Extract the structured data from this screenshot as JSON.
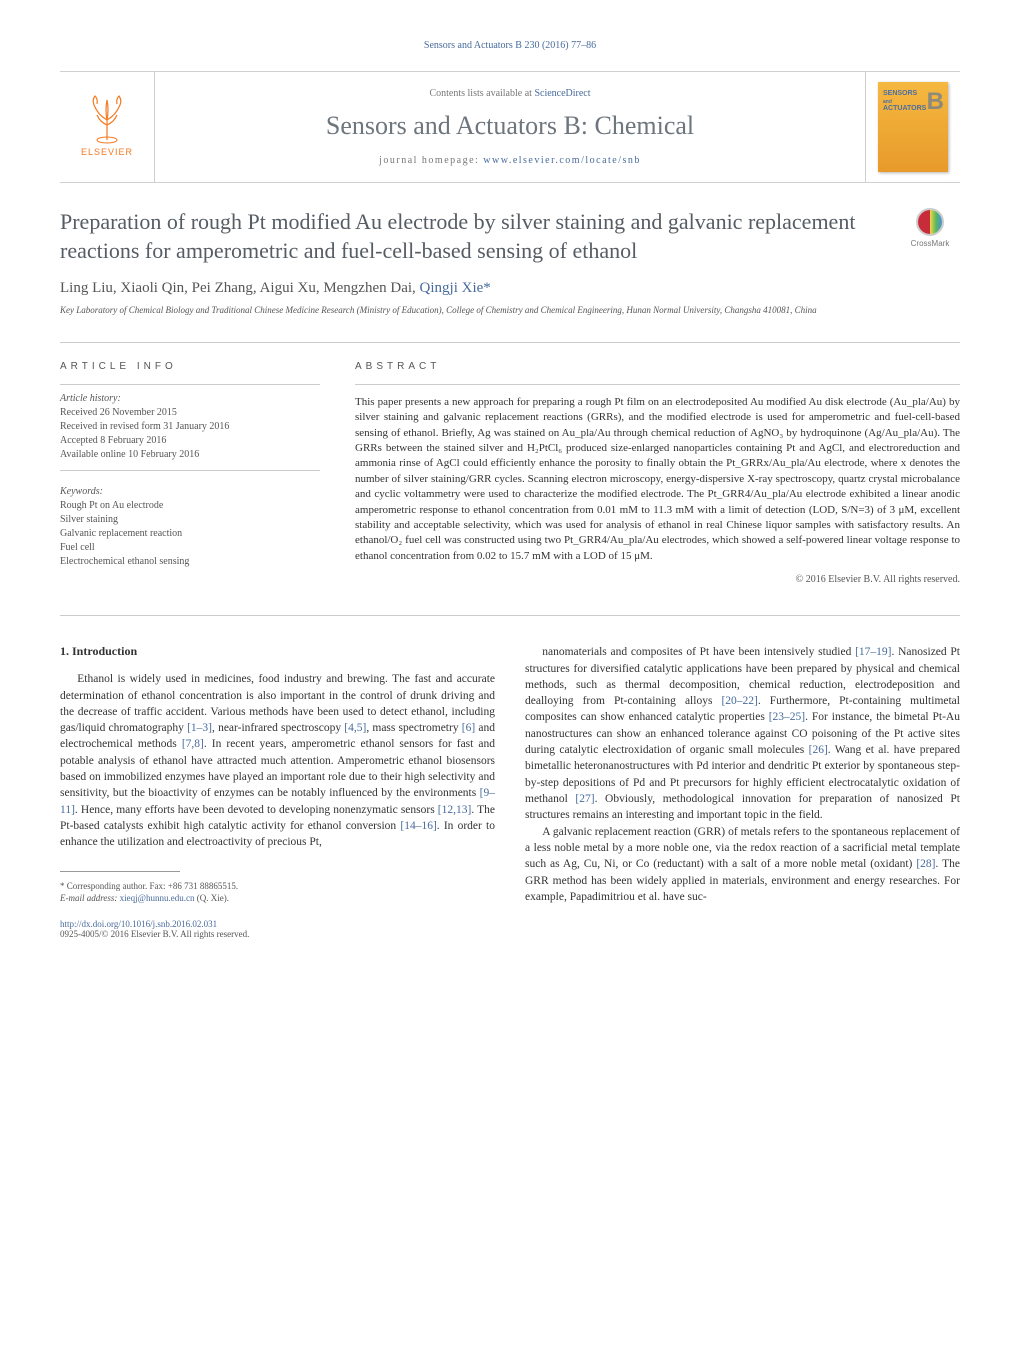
{
  "running_header": {
    "text": "Sensors and Actuators B 230 (2016) 77–86",
    "color": "#486b9c",
    "fontsize": 10
  },
  "masthead": {
    "publisher_logo_text": "ELSEVIER",
    "publisher_logo_color": "#f47920",
    "contents_prefix": "Contents lists available at ",
    "contents_link": "ScienceDirect",
    "journal_name": "Sensors and Actuators B: Chemical",
    "journal_name_color": "#6d757d",
    "journal_name_fontsize": 26,
    "homepage_label": "journal homepage: ",
    "homepage_url": "www.elsevier.com/locate/snb",
    "cover_top": "SENSORS",
    "cover_mid": "ACTUATORS",
    "cover_letter": "B",
    "cover_bg_gradient": [
      "#f5b840",
      "#e89a2a"
    ]
  },
  "crossmark": {
    "label": "CrossMark"
  },
  "title": "Preparation of rough Pt modified Au electrode by silver staining and galvanic replacement reactions for amperometric and fuel-cell-based sensing of ethanol",
  "title_color": "#555c63",
  "title_fontsize": 22,
  "authors_list": "Ling Liu, Xiaoli Qin, Pei Zhang, Aigui Xu, Mengzhen Dai, ",
  "corresponding_author": "Qingji Xie",
  "corresponding_marker": "*",
  "affiliation": "Key Laboratory of Chemical Biology and Traditional Chinese Medicine Research (Ministry of Education), College of Chemistry and Chemical Engineering, Hunan Normal University, Changsha 410081, China",
  "article_info": {
    "heading": "article info",
    "history_label": "Article history:",
    "history": [
      "Received 26 November 2015",
      "Received in revised form 31 January 2016",
      "Accepted 8 February 2016",
      "Available online 10 February 2016"
    ],
    "keywords_label": "Keywords:",
    "keywords": [
      "Rough Pt on Au electrode",
      "Silver staining",
      "Galvanic replacement reaction",
      "Fuel cell",
      "Electrochemical ethanol sensing"
    ]
  },
  "abstract": {
    "heading": "abstract",
    "text": "This paper presents a new approach for preparing a rough Pt film on an electrodeposited Au modified Au disk electrode (Au_pla/Au) by silver staining and galvanic replacement reactions (GRRs), and the modified electrode is used for amperometric and fuel-cell-based sensing of ethanol. Briefly, Ag was stained on Au_pla/Au through chemical reduction of AgNO₃ by hydroquinone (Ag/Au_pla/Au). The GRRs between the stained silver and H₂PtCl₆ produced size-enlarged nanoparticles containing Pt and AgCl, and electroreduction and ammonia rinse of AgCl could efficiently enhance the porosity to finally obtain the Pt_GRRx/Au_pla/Au electrode, where x denotes the number of silver staining/GRR cycles. Scanning electron microscopy, energy-dispersive X-ray spectroscopy, quartz crystal microbalance and cyclic voltammetry were used to characterize the modified electrode. The Pt_GRR4/Au_pla/Au electrode exhibited a linear anodic amperometric response to ethanol concentration from 0.01 mM to 11.3 mM with a limit of detection (LOD, S/N=3) of 3 μM, excellent stability and acceptable selectivity, which was used for analysis of ethanol in real Chinese liquor samples with satisfactory results. An ethanol/O₂ fuel cell was constructed using two Pt_GRR4/Au_pla/Au electrodes, which showed a self-powered linear voltage response to ethanol concentration from 0.02 to 15.7 mM with a LOD of 15 μM.",
    "copyright": "© 2016 Elsevier B.V. All rights reserved."
  },
  "intro_heading": "1.  Introduction",
  "body_col1_p1": "Ethanol is widely used in medicines, food industry and brewing. The fast and accurate determination of ethanol concentration is also important in the control of drunk driving and the decrease of traffic accident. Various methods have been used to detect ethanol, including gas/liquid chromatography [1–3], near-infrared spectroscopy [4,5], mass spectrometry [6] and electrochemical methods [7,8]. In recent years, amperometric ethanol sensors for fast and potable analysis of ethanol have attracted much attention. Amperometric ethanol biosensors based on immobilized enzymes have played an important role due to their high selectivity and sensitivity, but the bioactivity of enzymes can be notably influenced by the environments [9–11]. Hence, many efforts have been devoted to developing nonenzymatic sensors [12,13]. The Pt-based catalysts exhibit high catalytic activity for ethanol conversion [14–16]. In order to enhance the utilization and electroactivity of precious Pt,",
  "body_col2_p1": "nanomaterials and composites of Pt have been intensively studied [17–19]. Nanosized Pt structures for diversified catalytic applications have been prepared by physical and chemical methods, such as thermal decomposition, chemical reduction, electrodeposition and dealloying from Pt-containing alloys [20–22]. Furthermore, Pt-containing multimetal composites can show enhanced catalytic properties [23–25]. For instance, the bimetal Pt-Au nanostructures can show an enhanced tolerance against CO poisoning of the Pt active sites during catalytic electroxidation of organic small molecules [26]. Wang et al. have prepared bimetallic heteronanostructures with Pd interior and dendritic Pt exterior by spontaneous step-by-step depositions of Pd and Pt precursors for highly efficient electrocatalytic oxidation of methanol [27]. Obviously, methodological innovation for preparation of nanosized Pt structures remains an interesting and important topic in the field.",
  "body_col2_p2": "A galvanic replacement reaction (GRR) of metals refers to the spontaneous replacement of a less noble metal by a more noble one, via the redox reaction of a sacrificial metal template such as Ag, Cu, Ni, or Co (reductant) with a salt of a more noble metal (oxidant) [28]. The GRR method has been widely applied in materials, environment and energy researches. For example, Papadimitriou et al. have suc-",
  "footnote": {
    "marker": "*",
    "label": "Corresponding author. Fax: +86 731 88865515.",
    "email_label": "E-mail address:",
    "email": "xieqj@hunnu.edu.cn",
    "email_name": "(Q. Xie)."
  },
  "doi": {
    "url": "http://dx.doi.org/10.1016/j.snb.2016.02.031",
    "issn_line": "0925-4005/© 2016 Elsevier B.V. All rights reserved."
  },
  "link_color": "#486b9c",
  "citation_refs": {
    "r1": "[1–3]",
    "r2": "[4,5]",
    "r3": "[6]",
    "r4": "[7,8]",
    "r5": "[9–11]",
    "r6": "[12,13]",
    "r7": "[14–16]",
    "r8": "[17–19]",
    "r9": "[20–22]",
    "r10": "[23–25]",
    "r11": "[26]",
    "r12": "[27]",
    "r13": "[28]"
  }
}
